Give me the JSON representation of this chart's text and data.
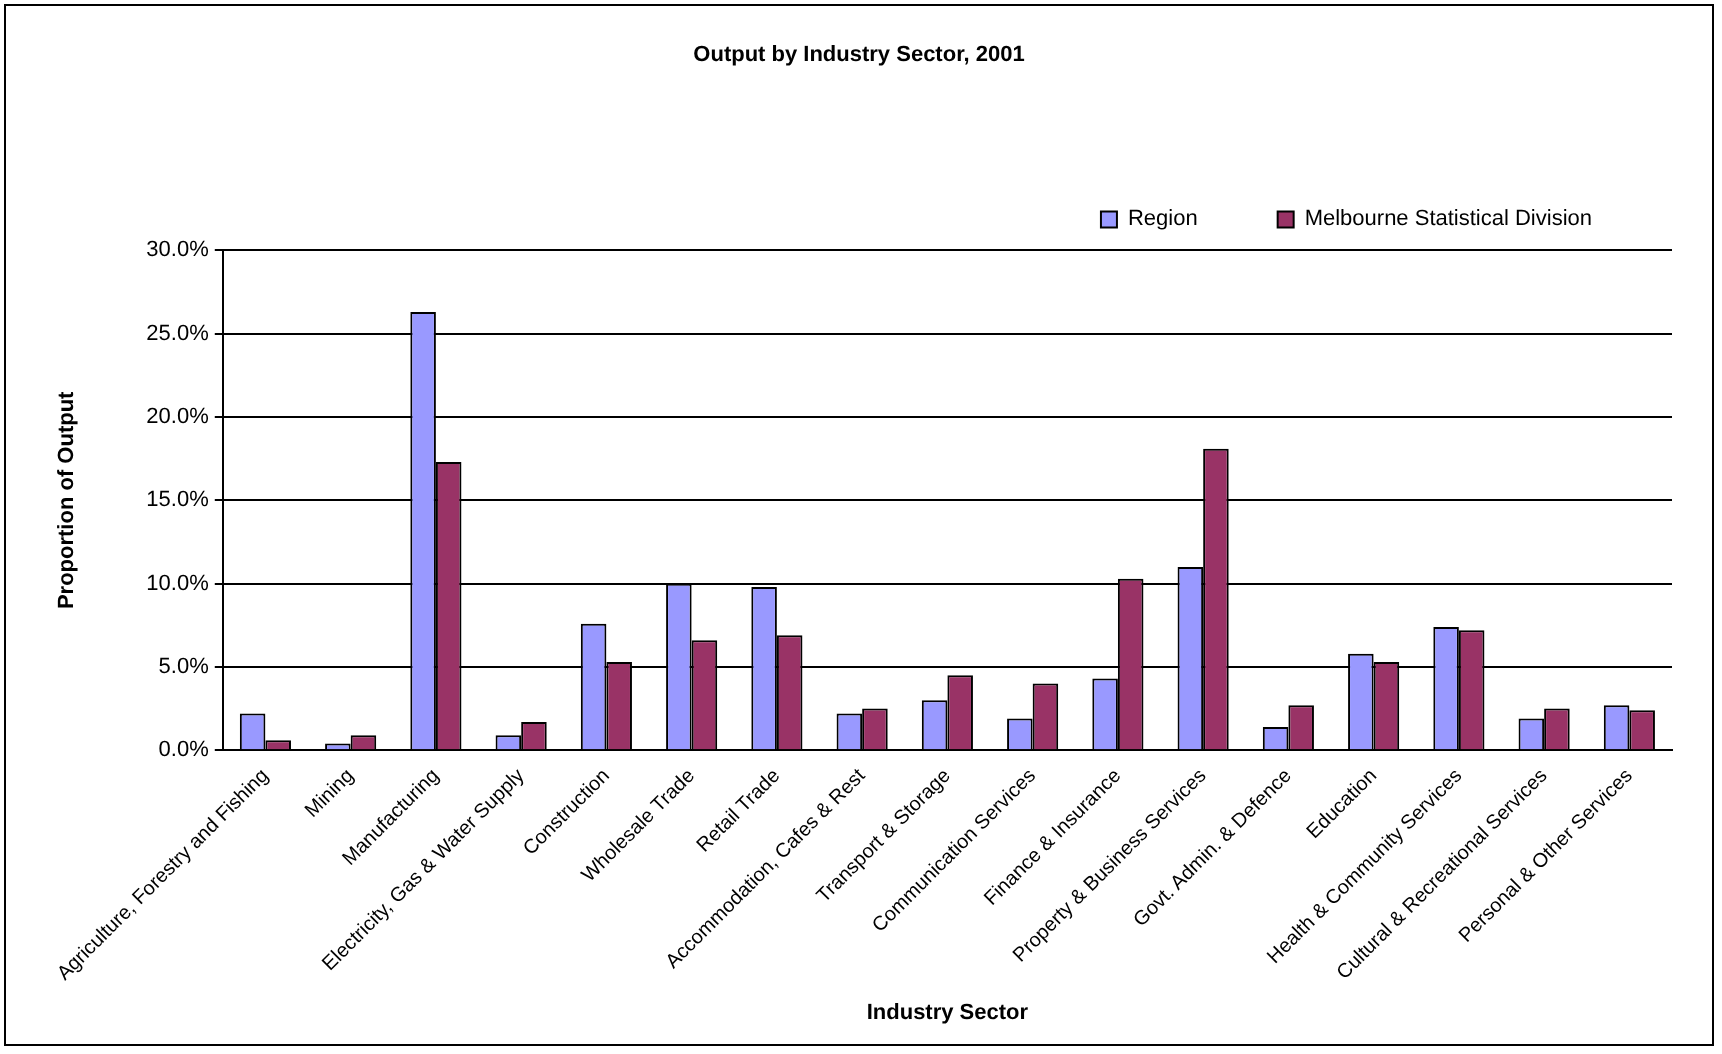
{
  "chart_data": {
    "type": "bar",
    "title": "Output by Industry Sector, 2001",
    "xlabel": "Industry Sector",
    "ylabel": "Proportion of Output",
    "categories": [
      "Agriculture, Forestry and Fishing",
      "Mining",
      "Manufacturing",
      "Electricity, Gas & Water Supply",
      "Construction",
      "Wholesale Trade",
      "Retail Trade",
      "Accommodation, Cafes & Rest",
      "Transport & Storage",
      "Communication Services",
      "Finance & Insurance",
      "Property & Business Services",
      "Govt. Admin. & Defence",
      "Education",
      "Health & Community Services",
      "Cultural & Recreational Services",
      "Personal & Other Services"
    ],
    "series": [
      {
        "name": "Region",
        "color": "#9999ff",
        "values": [
          2.2,
          0.4,
          26.3,
          0.9,
          7.6,
          10.0,
          9.8,
          2.2,
          3.0,
          1.9,
          4.3,
          11.0,
          1.4,
          5.8,
          7.4,
          1.9,
          2.7
        ]
      },
      {
        "name": "Melbourne Statistical Division",
        "color": "#993366",
        "values": [
          0.6,
          0.9,
          17.3,
          1.7,
          5.3,
          6.6,
          6.9,
          2.5,
          4.5,
          4.0,
          10.3,
          18.1,
          2.7,
          5.3,
          7.2,
          2.5,
          2.4
        ]
      }
    ],
    "ylim": [
      0,
      30
    ],
    "yticks": [
      {
        "value": 0,
        "label": "0.0%"
      },
      {
        "value": 5,
        "label": "5.0%"
      },
      {
        "value": 10,
        "label": "10.0%"
      },
      {
        "value": 15,
        "label": "15.0%"
      },
      {
        "value": 20,
        "label": "20.0%"
      },
      {
        "value": 25,
        "label": "25.0%"
      },
      {
        "value": 30,
        "label": "30.0%"
      }
    ],
    "grid": "y",
    "legend": "top right"
  }
}
